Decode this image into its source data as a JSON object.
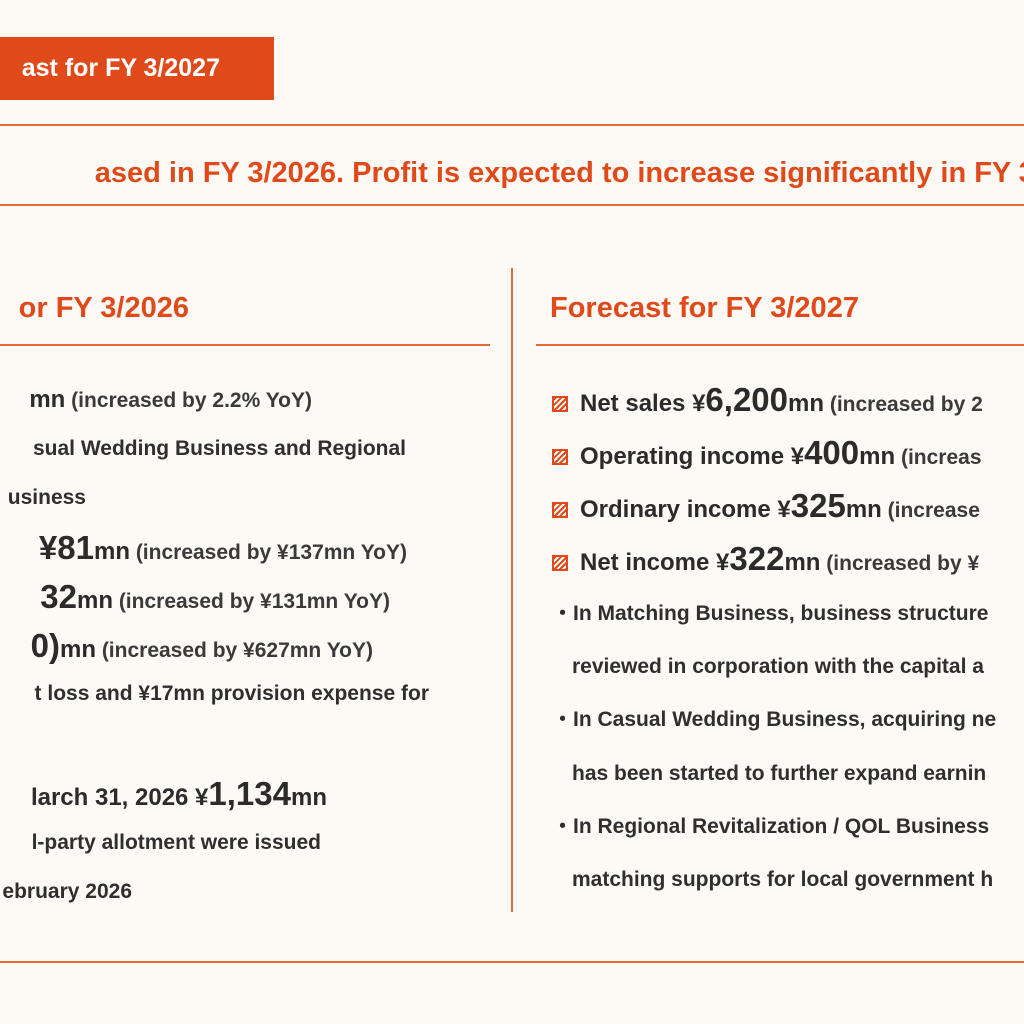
{
  "tag": {
    "label": "ast for FY 3/2027"
  },
  "headline": "ased in FY 3/2026. Profit is expected to increase significantly in FY 3/",
  "left": {
    "title": "or FY 3/2026",
    "lines": [
      {
        "num": "",
        "tail": "mn",
        "note": " (increased by 2.2% YoY)"
      },
      {
        "text": "sual Wedding Business and Regional"
      },
      {
        "text": "usiness"
      },
      {
        "num": "¥81",
        "tail": "mn",
        "note": " (increased by ¥137mn YoY)"
      },
      {
        "num": "32",
        "tail": "mn",
        "note": " (increased by ¥131mn YoY)"
      },
      {
        "num": "0)",
        "tail": "mn",
        "note": " (increased by ¥627mn YoY)"
      },
      {
        "text": "t loss and ¥17mn provision expense for"
      },
      {
        "text2": "larch 31, 2026 ¥",
        "num": "1,134",
        "tail": "mn"
      },
      {
        "text": "l-party allotment were issued"
      },
      {
        "text": "ebruary 2026"
      }
    ]
  },
  "right": {
    "title": "Forecast for FY 3/2027",
    "items": [
      {
        "label": "Net sales ¥",
        "num": "6,200",
        "tail": "mn",
        "note": " (increased by 2"
      },
      {
        "label": "Operating income ¥",
        "num": "400",
        "tail": "mn",
        "note": " (increas"
      },
      {
        "label": "Ordinary income ¥",
        "num": "325",
        "tail": "mn",
        "note": " (increase"
      },
      {
        "label": "Net income ¥",
        "num": "322",
        "tail": "mn",
        "note": " (increased by ¥"
      }
    ],
    "notes": [
      "・In Matching Business, business structure",
      "reviewed in corporation with the capital a",
      "・In Casual Wedding Business, acquiring ne",
      "has been started to further expand earnin",
      "・In Regional Revitalization / QOL Business",
      "matching supports for local government h"
    ]
  }
}
